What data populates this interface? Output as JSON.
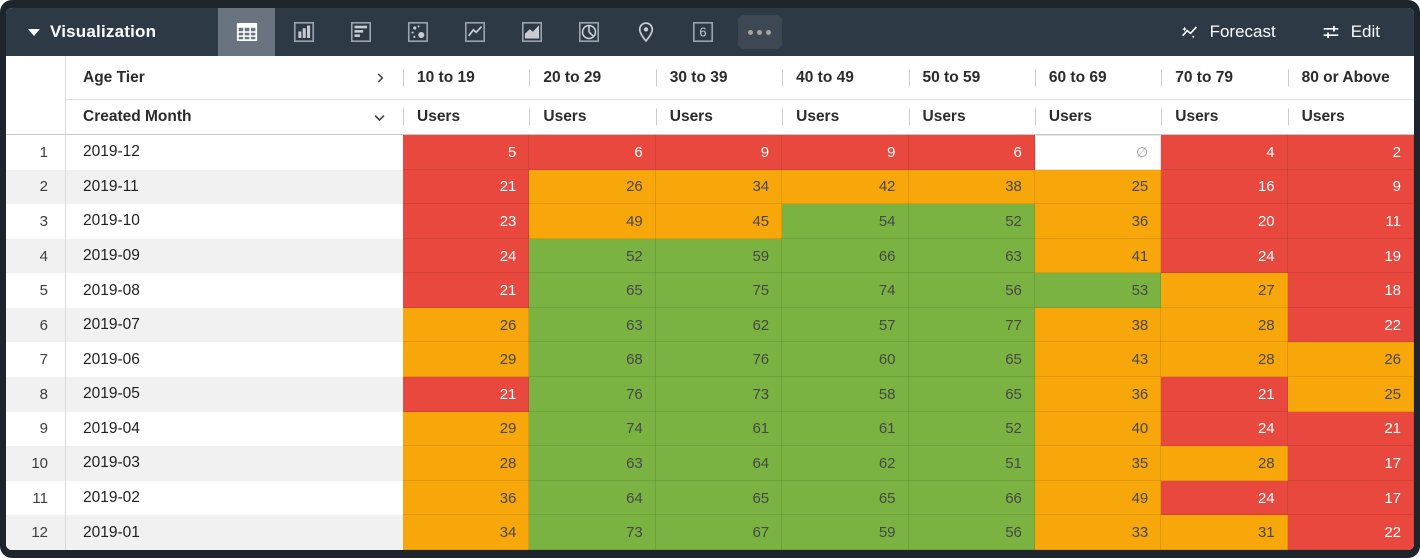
{
  "titlebar": {
    "title": "Visualization",
    "viz_icons": [
      "table-chart",
      "bar-chart",
      "row-bar-chart",
      "scatter-chart",
      "line-chart",
      "area-chart",
      "pie-chart",
      "map-pin",
      "single-value",
      "more-viz-options"
    ],
    "forecast_label": "Forecast",
    "edit_label": "Edit"
  },
  "table": {
    "pivot_field": "Age Tier",
    "row_field": "Created Month",
    "measure_label": "Users",
    "columns": [
      "10 to 19",
      "20 to 29",
      "30 to 39",
      "40 to 49",
      "50 to 59",
      "60 to 69",
      "70 to 79",
      "80 or Above"
    ],
    "null_symbol": "∅",
    "rows": [
      {
        "num": "1",
        "month": "2019-12",
        "cells": [
          {
            "v": "5",
            "c": "red"
          },
          {
            "v": "6",
            "c": "red"
          },
          {
            "v": "9",
            "c": "red"
          },
          {
            "v": "9",
            "c": "red"
          },
          {
            "v": "6",
            "c": "red"
          },
          {
            "v": "∅",
            "c": "null"
          },
          {
            "v": "4",
            "c": "red"
          },
          {
            "v": "2",
            "c": "red"
          }
        ]
      },
      {
        "num": "2",
        "month": "2019-11",
        "cells": [
          {
            "v": "21",
            "c": "red"
          },
          {
            "v": "26",
            "c": "orange"
          },
          {
            "v": "34",
            "c": "orange"
          },
          {
            "v": "42",
            "c": "orange"
          },
          {
            "v": "38",
            "c": "orange"
          },
          {
            "v": "25",
            "c": "orange"
          },
          {
            "v": "16",
            "c": "red"
          },
          {
            "v": "9",
            "c": "red"
          }
        ]
      },
      {
        "num": "3",
        "month": "2019-10",
        "cells": [
          {
            "v": "23",
            "c": "red"
          },
          {
            "v": "49",
            "c": "orange"
          },
          {
            "v": "45",
            "c": "orange"
          },
          {
            "v": "54",
            "c": "green"
          },
          {
            "v": "52",
            "c": "green"
          },
          {
            "v": "36",
            "c": "orange"
          },
          {
            "v": "20",
            "c": "red"
          },
          {
            "v": "11",
            "c": "red"
          }
        ]
      },
      {
        "num": "4",
        "month": "2019-09",
        "cells": [
          {
            "v": "24",
            "c": "red"
          },
          {
            "v": "52",
            "c": "green"
          },
          {
            "v": "59",
            "c": "green"
          },
          {
            "v": "66",
            "c": "green"
          },
          {
            "v": "63",
            "c": "green"
          },
          {
            "v": "41",
            "c": "orange"
          },
          {
            "v": "24",
            "c": "red"
          },
          {
            "v": "19",
            "c": "red"
          }
        ]
      },
      {
        "num": "5",
        "month": "2019-08",
        "cells": [
          {
            "v": "21",
            "c": "red"
          },
          {
            "v": "65",
            "c": "green"
          },
          {
            "v": "75",
            "c": "green"
          },
          {
            "v": "74",
            "c": "green"
          },
          {
            "v": "56",
            "c": "green"
          },
          {
            "v": "53",
            "c": "green"
          },
          {
            "v": "27",
            "c": "orange"
          },
          {
            "v": "18",
            "c": "red"
          }
        ]
      },
      {
        "num": "6",
        "month": "2019-07",
        "cells": [
          {
            "v": "26",
            "c": "orange"
          },
          {
            "v": "63",
            "c": "green"
          },
          {
            "v": "62",
            "c": "green"
          },
          {
            "v": "57",
            "c": "green"
          },
          {
            "v": "77",
            "c": "green"
          },
          {
            "v": "38",
            "c": "orange"
          },
          {
            "v": "28",
            "c": "orange"
          },
          {
            "v": "22",
            "c": "red"
          }
        ]
      },
      {
        "num": "7",
        "month": "2019-06",
        "cells": [
          {
            "v": "29",
            "c": "orange"
          },
          {
            "v": "68",
            "c": "green"
          },
          {
            "v": "76",
            "c": "green"
          },
          {
            "v": "60",
            "c": "green"
          },
          {
            "v": "65",
            "c": "green"
          },
          {
            "v": "43",
            "c": "orange"
          },
          {
            "v": "28",
            "c": "orange"
          },
          {
            "v": "26",
            "c": "orange"
          }
        ]
      },
      {
        "num": "8",
        "month": "2019-05",
        "cells": [
          {
            "v": "21",
            "c": "red"
          },
          {
            "v": "76",
            "c": "green"
          },
          {
            "v": "73",
            "c": "green"
          },
          {
            "v": "58",
            "c": "green"
          },
          {
            "v": "65",
            "c": "green"
          },
          {
            "v": "36",
            "c": "orange"
          },
          {
            "v": "21",
            "c": "red"
          },
          {
            "v": "25",
            "c": "orange"
          }
        ]
      },
      {
        "num": "9",
        "month": "2019-04",
        "cells": [
          {
            "v": "29",
            "c": "orange"
          },
          {
            "v": "74",
            "c": "green"
          },
          {
            "v": "61",
            "c": "green"
          },
          {
            "v": "61",
            "c": "green"
          },
          {
            "v": "52",
            "c": "green"
          },
          {
            "v": "40",
            "c": "orange"
          },
          {
            "v": "24",
            "c": "red"
          },
          {
            "v": "21",
            "c": "red"
          }
        ]
      },
      {
        "num": "10",
        "month": "2019-03",
        "cells": [
          {
            "v": "28",
            "c": "orange"
          },
          {
            "v": "63",
            "c": "green"
          },
          {
            "v": "64",
            "c": "green"
          },
          {
            "v": "62",
            "c": "green"
          },
          {
            "v": "51",
            "c": "green"
          },
          {
            "v": "35",
            "c": "orange"
          },
          {
            "v": "28",
            "c": "orange"
          },
          {
            "v": "17",
            "c": "red"
          }
        ]
      },
      {
        "num": "11",
        "month": "2019-02",
        "cells": [
          {
            "v": "36",
            "c": "orange"
          },
          {
            "v": "64",
            "c": "green"
          },
          {
            "v": "65",
            "c": "green"
          },
          {
            "v": "65",
            "c": "green"
          },
          {
            "v": "66",
            "c": "green"
          },
          {
            "v": "49",
            "c": "orange"
          },
          {
            "v": "24",
            "c": "red"
          },
          {
            "v": "17",
            "c": "red"
          }
        ]
      },
      {
        "num": "12",
        "month": "2019-01",
        "cells": [
          {
            "v": "34",
            "c": "orange"
          },
          {
            "v": "73",
            "c": "green"
          },
          {
            "v": "67",
            "c": "green"
          },
          {
            "v": "59",
            "c": "green"
          },
          {
            "v": "56",
            "c": "green"
          },
          {
            "v": "33",
            "c": "orange"
          },
          {
            "v": "31",
            "c": "orange"
          },
          {
            "v": "22",
            "c": "red"
          }
        ]
      }
    ]
  },
  "colors": {
    "red": "#E8483E",
    "orange": "#F7A70A",
    "green": "#7BB342",
    "header_bg": "#2d3a46",
    "selected_tile": "#6a7480"
  }
}
